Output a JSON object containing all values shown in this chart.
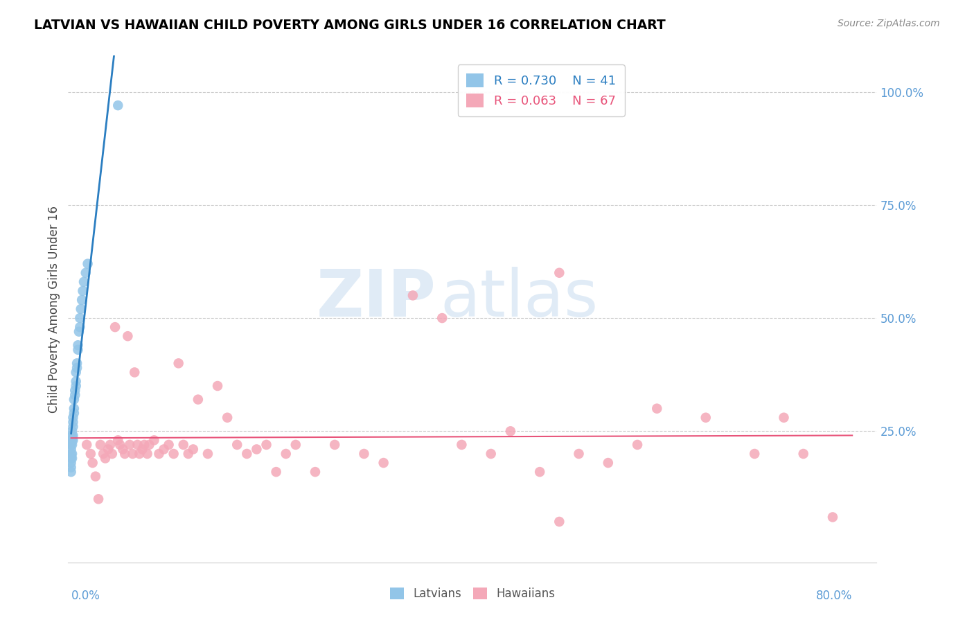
{
  "title": "LATVIAN VS HAWAIIAN CHILD POVERTY AMONG GIRLS UNDER 16 CORRELATION CHART",
  "source": "Source: ZipAtlas.com",
  "ylabel": "Child Poverty Among Girls Under 16",
  "right_yticklabels": [
    "",
    "25.0%",
    "50.0%",
    "75.0%",
    "100.0%"
  ],
  "right_ytick_vals": [
    0.0,
    0.25,
    0.5,
    0.75,
    1.0
  ],
  "watermark_zip": "ZIP",
  "watermark_atlas": "atlas",
  "latvian_R": 0.73,
  "latvian_N": 41,
  "hawaiian_R": 0.063,
  "hawaiian_N": 67,
  "latvian_color": "#92C5E8",
  "hawaiian_color": "#F4A8B8",
  "trendline_latvian_color": "#2B7EC1",
  "trendline_hawaiian_color": "#E8547A",
  "xlim_min": -0.003,
  "xlim_max": 0.825,
  "ylim_min": -0.04,
  "ylim_max": 1.08,
  "xaxis_label_left": "0.0%",
  "xaxis_label_right": "80.0%",
  "axis_color": "#5B9BD5",
  "grid_color": "#CCCCCC",
  "latvian_x": [
    0.0,
    0.0,
    0.0,
    0.0,
    0.0,
    0.0,
    0.0,
    0.0,
    0.001,
    0.001,
    0.001,
    0.001,
    0.001,
    0.001,
    0.002,
    0.002,
    0.002,
    0.002,
    0.002,
    0.003,
    0.003,
    0.003,
    0.004,
    0.004,
    0.005,
    0.005,
    0.005,
    0.006,
    0.006,
    0.007,
    0.007,
    0.008,
    0.009,
    0.009,
    0.01,
    0.011,
    0.012,
    0.013,
    0.015,
    0.017,
    0.048
  ],
  "latvian_y": [
    0.2,
    0.21,
    0.22,
    0.23,
    0.18,
    0.17,
    0.19,
    0.16,
    0.24,
    0.25,
    0.23,
    0.22,
    0.19,
    0.2,
    0.26,
    0.28,
    0.27,
    0.24,
    0.23,
    0.3,
    0.32,
    0.29,
    0.34,
    0.33,
    0.36,
    0.38,
    0.35,
    0.4,
    0.39,
    0.43,
    0.44,
    0.47,
    0.5,
    0.48,
    0.52,
    0.54,
    0.56,
    0.58,
    0.6,
    0.62,
    0.97
  ],
  "hawaiian_x": [
    0.016,
    0.02,
    0.022,
    0.025,
    0.028,
    0.03,
    0.033,
    0.035,
    0.038,
    0.04,
    0.042,
    0.045,
    0.048,
    0.05,
    0.053,
    0.055,
    0.058,
    0.06,
    0.063,
    0.065,
    0.068,
    0.07,
    0.073,
    0.075,
    0.078,
    0.08,
    0.085,
    0.09,
    0.095,
    0.1,
    0.105,
    0.11,
    0.115,
    0.12,
    0.125,
    0.13,
    0.14,
    0.15,
    0.16,
    0.17,
    0.18,
    0.19,
    0.2,
    0.21,
    0.22,
    0.23,
    0.25,
    0.27,
    0.3,
    0.32,
    0.35,
    0.38,
    0.4,
    0.43,
    0.45,
    0.48,
    0.5,
    0.52,
    0.55,
    0.58,
    0.6,
    0.65,
    0.5,
    0.7,
    0.73,
    0.75,
    0.78
  ],
  "hawaiian_y": [
    0.22,
    0.2,
    0.18,
    0.15,
    0.1,
    0.22,
    0.2,
    0.19,
    0.21,
    0.22,
    0.2,
    0.48,
    0.23,
    0.22,
    0.21,
    0.2,
    0.46,
    0.22,
    0.2,
    0.38,
    0.22,
    0.2,
    0.21,
    0.22,
    0.2,
    0.22,
    0.23,
    0.2,
    0.21,
    0.22,
    0.2,
    0.4,
    0.22,
    0.2,
    0.21,
    0.32,
    0.2,
    0.35,
    0.28,
    0.22,
    0.2,
    0.21,
    0.22,
    0.16,
    0.2,
    0.22,
    0.16,
    0.22,
    0.2,
    0.18,
    0.55,
    0.5,
    0.22,
    0.2,
    0.25,
    0.16,
    0.05,
    0.2,
    0.18,
    0.22,
    0.3,
    0.28,
    0.6,
    0.2,
    0.28,
    0.2,
    0.06
  ]
}
